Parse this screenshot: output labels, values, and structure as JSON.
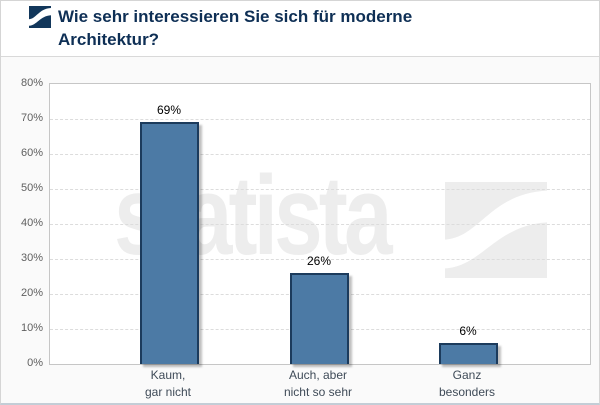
{
  "header": {
    "logo_icon": "statista-logo",
    "title_line1": "Wie sehr interessieren Sie sich für moderne",
    "title_line2": "Architektur?"
  },
  "watermark": {
    "text": "statista",
    "logo_icon": "statista-swoosh"
  },
  "chart_data": {
    "type": "bar",
    "title": "Wie sehr interessieren Sie sich für moderne Architektur?",
    "categories": [
      "Kaum, gar nicht",
      "Auch, aber nicht so sehr",
      "Ganz besonders"
    ],
    "category_lines": [
      [
        "Kaum,",
        "gar nicht"
      ],
      [
        "Auch, aber",
        "nicht so sehr"
      ],
      [
        "Ganz",
        "besonders"
      ]
    ],
    "values": [
      69,
      26,
      6
    ],
    "value_label_suffix": "%",
    "xlabel": "",
    "ylabel": "",
    "ylim": [
      0,
      80
    ],
    "ytick_step": 10,
    "yticklabels": [
      "0%",
      "10%",
      "20%",
      "30%",
      "40%",
      "50%",
      "60%",
      "70%",
      "80%"
    ],
    "grid": "horizontal-dashed",
    "legend": "none",
    "bar_color": "#4C7AA5",
    "bar_border_color": "#1C3B5C"
  },
  "colors": {
    "title": "#0E2F55",
    "axis_label": "#5F5F5F",
    "category_label": "#3F4B58",
    "value_label": "#000000",
    "watermark": "#EDEDED",
    "grid_line": "#DCDCDC",
    "plot_border": "#C6C6C6",
    "bar_fill": "#4C7AA5",
    "bar_border": "#1C3B5C",
    "logo_navy": "#12375B"
  }
}
